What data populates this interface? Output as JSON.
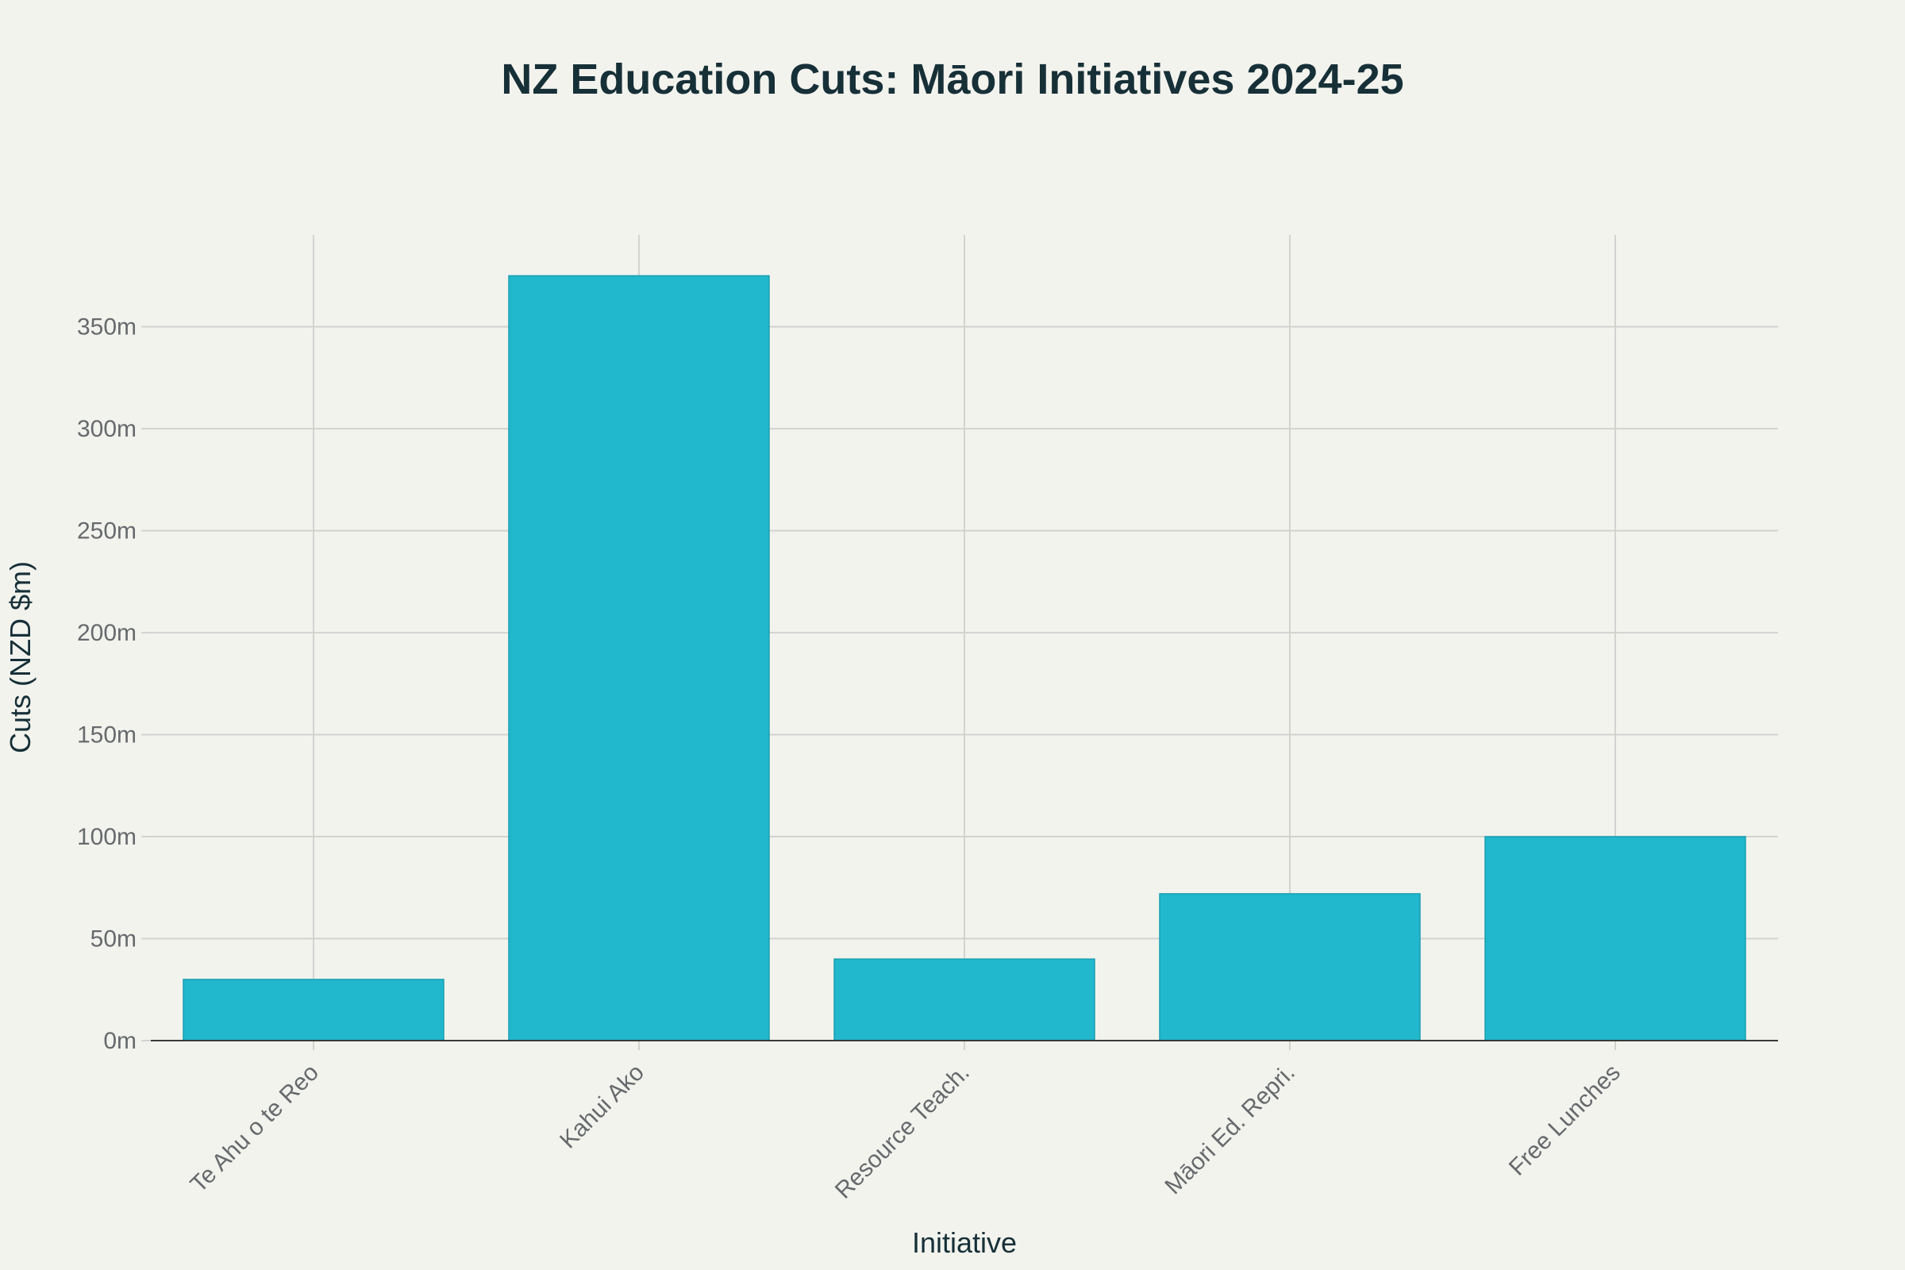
{
  "chart_data": {
    "type": "bar",
    "title": "NZ Education Cuts: Māori Initiatives 2024-25",
    "xlabel": "Initiative",
    "ylabel": "Cuts (NZD $m)",
    "categories": [
      "Te Ahu o te Reo",
      "Kahui Ako",
      "Resource Teach.",
      "Māori Ed. Repri.",
      "Free Lunches"
    ],
    "values": [
      30,
      375,
      40,
      72,
      100
    ],
    "yticks": [
      0,
      50,
      100,
      150,
      200,
      250,
      300,
      350
    ],
    "ytick_labels": [
      "0m",
      "50m",
      "100m",
      "150m",
      "200m",
      "250m",
      "300m",
      "350m"
    ],
    "ylim": [
      0,
      395
    ],
    "grid": true,
    "bar_color": "#21b7cc"
  }
}
